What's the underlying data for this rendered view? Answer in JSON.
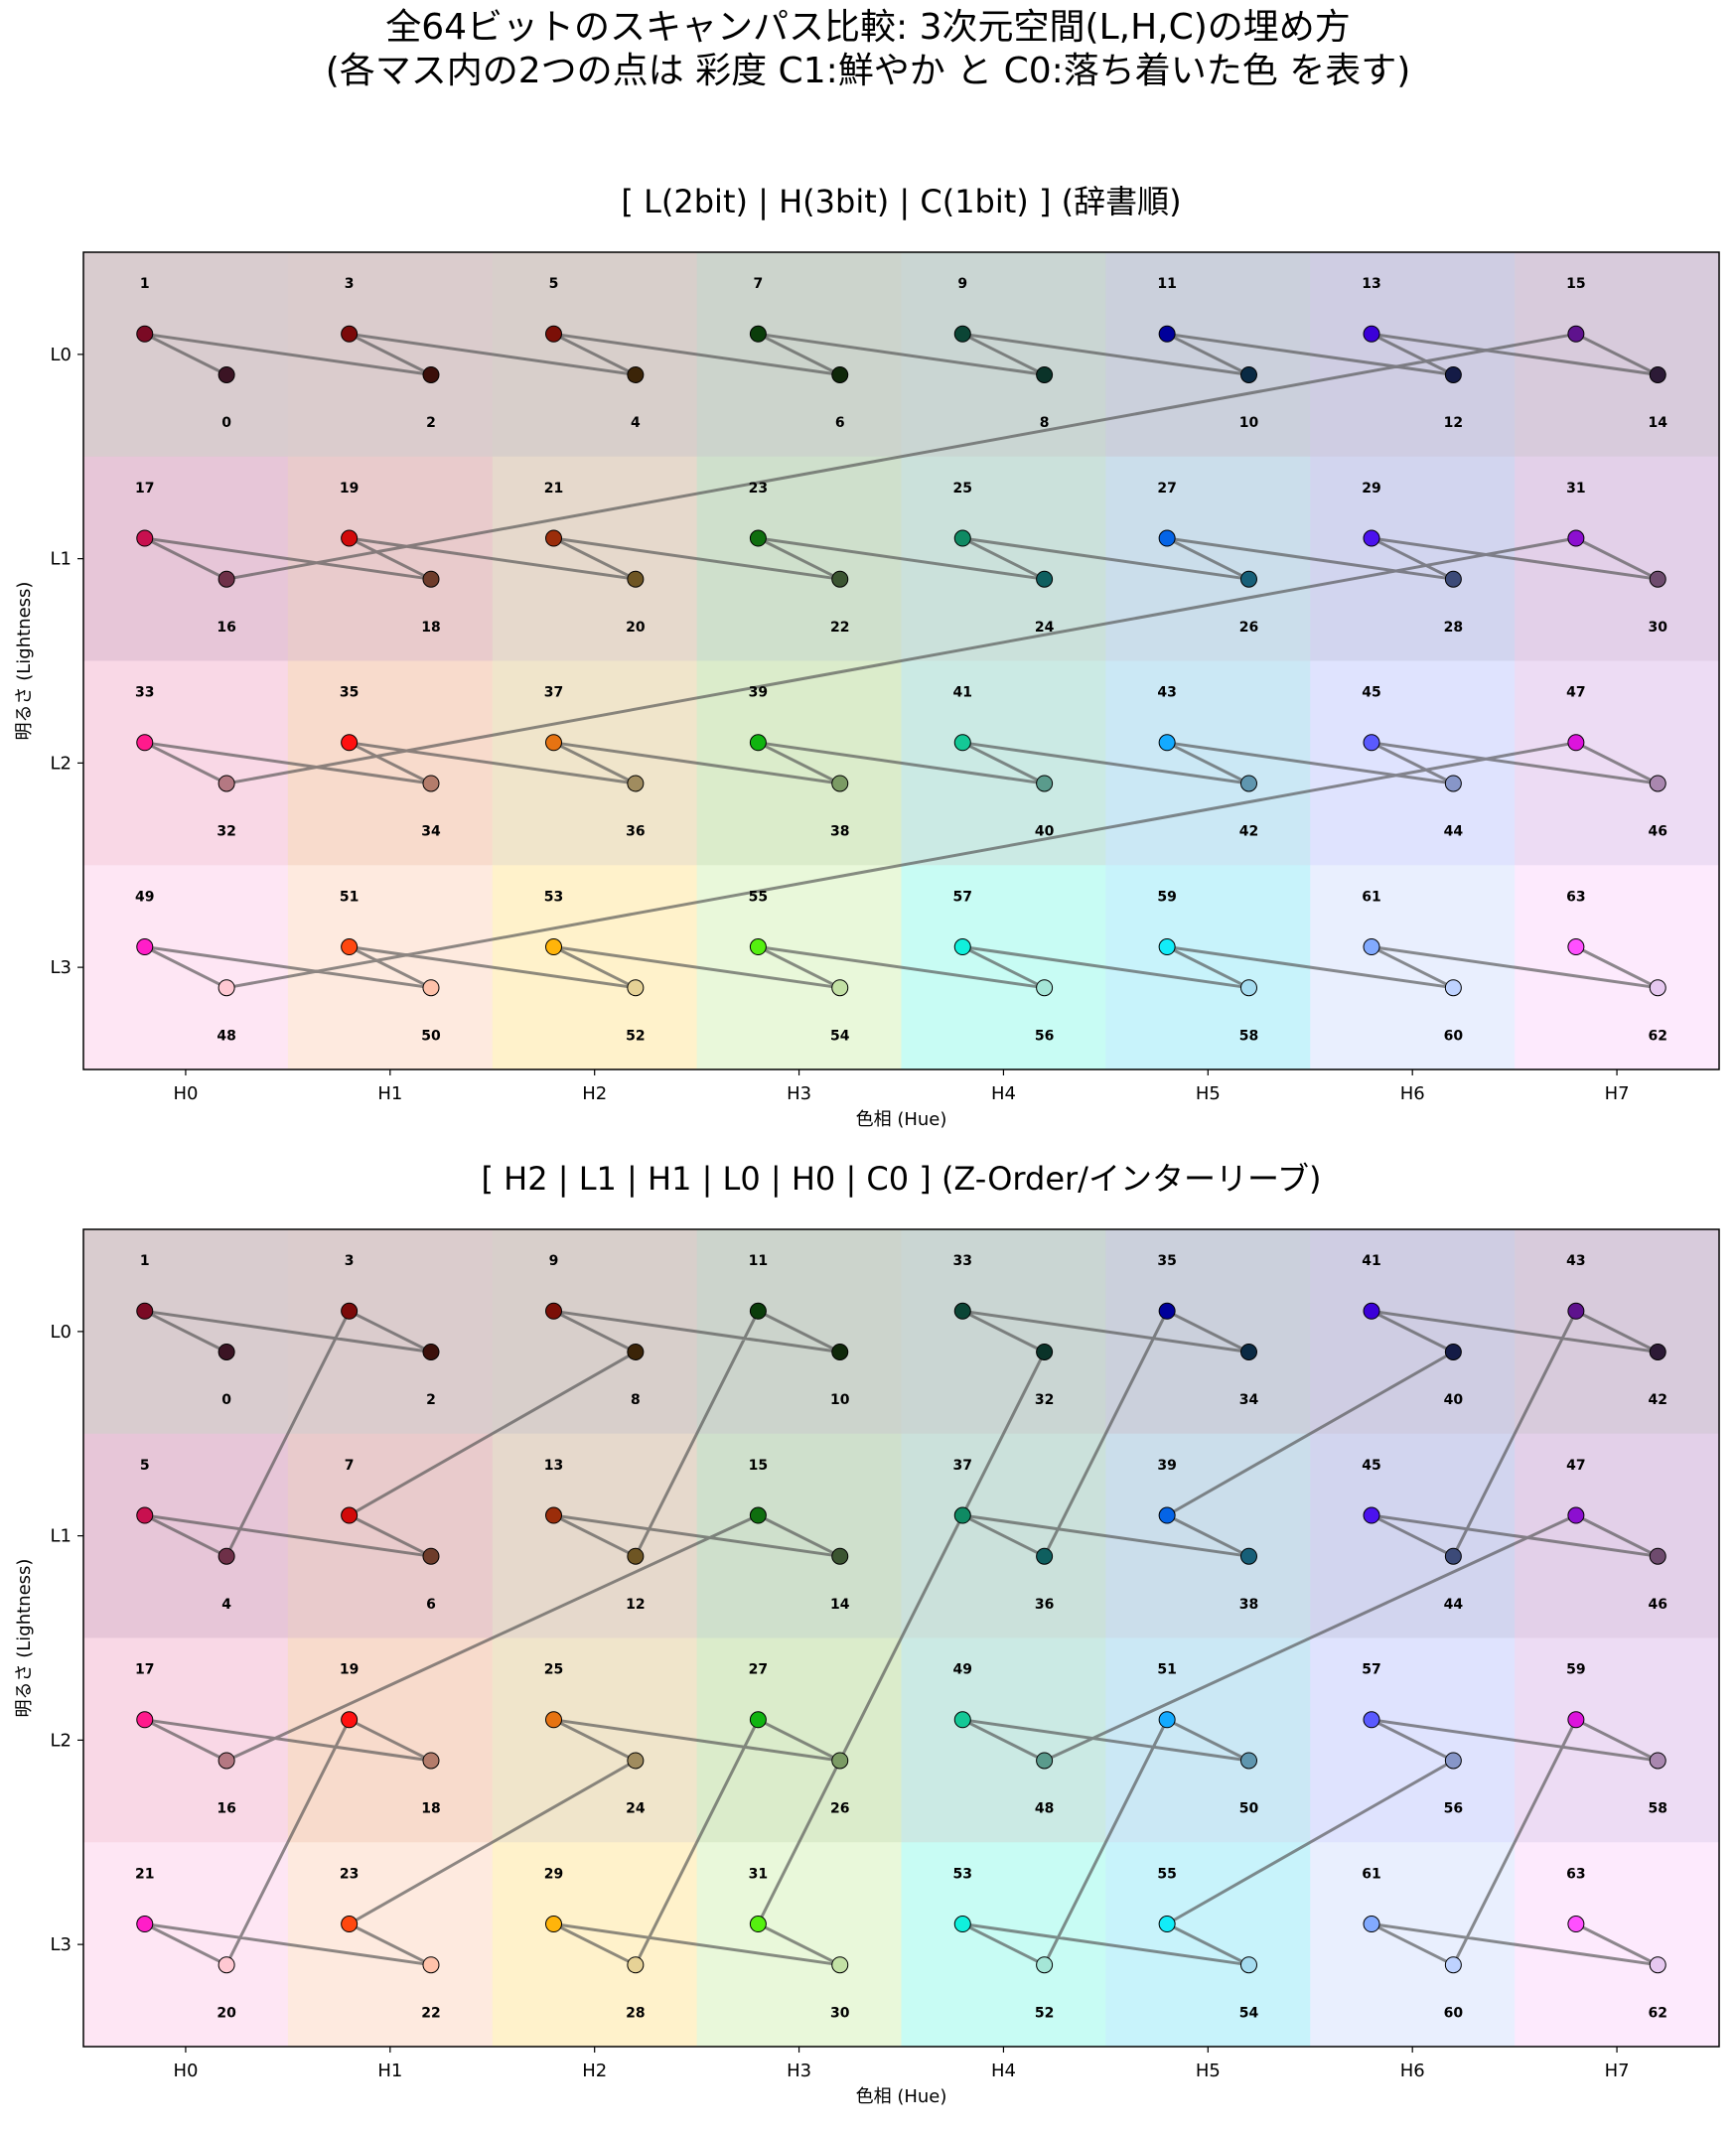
{
  "figure": {
    "title_line1": "全64ビットのスキャンパス比較: 3次元空間(L,H,C)の埋め方",
    "title_line2": "(各マス内の2つの点は 彩度 C1:鮮やか と C0:落ち着いた色 を表す)"
  },
  "chart_data": [
    {
      "type": "scatter",
      "title": "[ L(2bit) | H(3bit) | C(1bit) ] (辞書順)",
      "xlabel": "色相 (Hue)",
      "ylabel": "明るさ (Lightness)",
      "x_ticks": [
        "H0",
        "H1",
        "H2",
        "H3",
        "H4",
        "H5",
        "H6",
        "H7"
      ],
      "y_ticks": [
        "L0",
        "L1",
        "L2",
        "L3"
      ],
      "ordering": "lexicographic",
      "path": "connect points in increasing order 0..63",
      "labels": [
        [
          [
            0,
            1
          ],
          [
            2,
            3
          ],
          [
            4,
            5
          ],
          [
            6,
            7
          ],
          [
            8,
            9
          ],
          [
            10,
            11
          ],
          [
            12,
            13
          ],
          [
            14,
            15
          ]
        ],
        [
          [
            16,
            17
          ],
          [
            18,
            19
          ],
          [
            20,
            21
          ],
          [
            22,
            23
          ],
          [
            24,
            25
          ],
          [
            26,
            27
          ],
          [
            28,
            29
          ],
          [
            30,
            31
          ]
        ],
        [
          [
            32,
            33
          ],
          [
            34,
            35
          ],
          [
            36,
            37
          ],
          [
            38,
            39
          ],
          [
            40,
            41
          ],
          [
            42,
            43
          ],
          [
            44,
            45
          ],
          [
            46,
            47
          ]
        ],
        [
          [
            48,
            49
          ],
          [
            50,
            51
          ],
          [
            52,
            53
          ],
          [
            54,
            55
          ],
          [
            56,
            57
          ],
          [
            58,
            59
          ],
          [
            60,
            61
          ],
          [
            62,
            63
          ]
        ]
      ]
    },
    {
      "type": "scatter",
      "title": "[ H2 | L1 | H1 | L0 | H0 | C0 ] (Z-Order/インターリーブ)",
      "xlabel": "色相 (Hue)",
      "ylabel": "明るさ (Lightness)",
      "x_ticks": [
        "H0",
        "H1",
        "H2",
        "H3",
        "H4",
        "H5",
        "H6",
        "H7"
      ],
      "y_ticks": [
        "L0",
        "L1",
        "L2",
        "L3"
      ],
      "ordering": "z-order",
      "path": "connect points in increasing order 0..63",
      "labels": [
        [
          [
            0,
            1
          ],
          [
            2,
            3
          ],
          [
            8,
            9
          ],
          [
            10,
            11
          ],
          [
            32,
            33
          ],
          [
            34,
            35
          ],
          [
            40,
            41
          ],
          [
            42,
            43
          ]
        ],
        [
          [
            4,
            5
          ],
          [
            6,
            7
          ],
          [
            12,
            13
          ],
          [
            14,
            15
          ],
          [
            36,
            37
          ],
          [
            38,
            39
          ],
          [
            44,
            45
          ],
          [
            46,
            47
          ]
        ],
        [
          [
            16,
            17
          ],
          [
            18,
            19
          ],
          [
            24,
            25
          ],
          [
            26,
            27
          ],
          [
            48,
            49
          ],
          [
            50,
            51
          ],
          [
            56,
            57
          ],
          [
            58,
            59
          ]
        ],
        [
          [
            20,
            21
          ],
          [
            22,
            23
          ],
          [
            28,
            29
          ],
          [
            30,
            31
          ],
          [
            52,
            53
          ],
          [
            54,
            55
          ],
          [
            60,
            61
          ],
          [
            62,
            63
          ]
        ]
      ]
    }
  ],
  "colors": {
    "background": [
      [
        "#d9cccf",
        "#dbcccd",
        "#d8cfcb",
        "#ccd4cc",
        "#cad6d3",
        "#cbd0dc",
        "#cfcde3",
        "#d8cbdc"
      ],
      [
        "#e7c6d8",
        "#e9cbcc",
        "#e6d9cc",
        "#cfe0cc",
        "#cbe1db",
        "#cbdeeb",
        "#d2d5ef",
        "#e3d0e9"
      ],
      [
        "#f9d8e6",
        "#f8dbcc",
        "#f0e5cb",
        "#dbeccb",
        "#cbeae4",
        "#cbe8f5",
        "#dfe3fe",
        "#eddcf4"
      ],
      [
        "#fee6f4",
        "#feeadf",
        "#fff2cb",
        "#e9f8da",
        "#c8fcf4",
        "#c8f3fb",
        "#e9effe",
        "#fdeafd"
      ]
    ],
    "vivid": [
      [
        "#7a0a24",
        "#7b0a0a",
        "#7b0f07",
        "#0a3d0a",
        "#0b4535",
        "#00009a",
        "#3b00d8",
        "#5e128d"
      ],
      [
        "#c8104f",
        "#d20a0a",
        "#9b2d0a",
        "#0f6e0f",
        "#0f8a63",
        "#0564e6",
        "#4b12ee",
        "#8c0fd0"
      ],
      [
        "#ff1a8c",
        "#ff1010",
        "#e67312",
        "#10b410",
        "#14c896",
        "#14aaff",
        "#5a5aff",
        "#dc14dc"
      ],
      [
        "#ff1ec8",
        "#ff4810",
        "#ffb40a",
        "#55f010",
        "#10f0dc",
        "#12ecf8",
        "#82aaff",
        "#ff50ff"
      ]
    ],
    "muted": [
      [
        "#3b1424",
        "#3b0f0a",
        "#3b2408",
        "#0f280a",
        "#0a3329",
        "#0a2a44",
        "#141b46",
        "#2c1a36"
      ],
      [
        "#6e3048",
        "#6e3c2b",
        "#6e5523",
        "#3b5531",
        "#0f5f5f",
        "#175f78",
        "#3c4a78",
        "#6e4b6e"
      ],
      [
        "#b47882",
        "#b47c6b",
        "#a08c5f",
        "#7b9b64",
        "#5a9b8c",
        "#5f96af",
        "#8796c8",
        "#a987af"
      ],
      [
        "#ffc8d2",
        "#ffc2aa",
        "#e6d296",
        "#c3e1a5",
        "#a5e6d7",
        "#a5dcf0",
        "#bed2ff",
        "#e6c8f0"
      ]
    ]
  }
}
